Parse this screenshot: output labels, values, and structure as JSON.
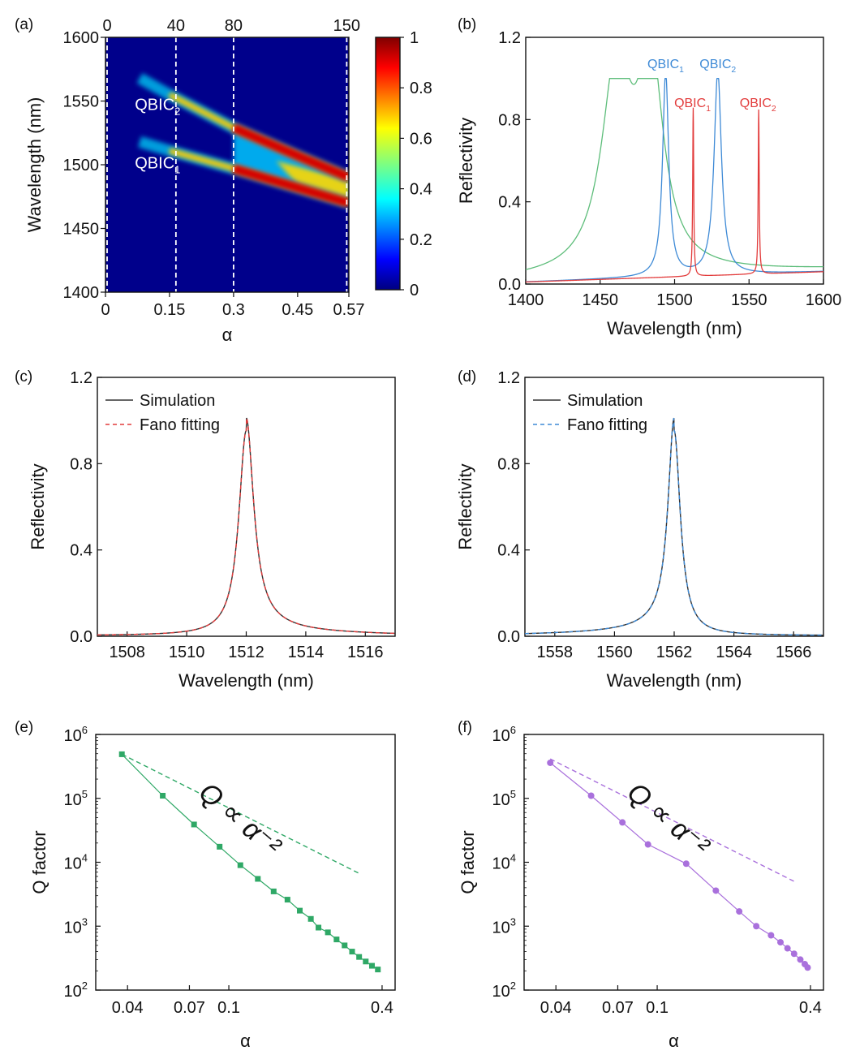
{
  "panels": [
    {
      "label": "(a)"
    },
    {
      "label": "(b)"
    },
    {
      "label": "(c)"
    },
    {
      "label": "(d)"
    },
    {
      "label": "(e)"
    },
    {
      "label": "(f)"
    }
  ],
  "chart_data": [
    {
      "panel": "(a)",
      "type": "heatmap",
      "xlabel": "α",
      "ylabel": "Wavelength (nm)",
      "xlim": [
        0,
        0.57
      ],
      "ylim": [
        1400,
        1600
      ],
      "xticks": [
        "0",
        "0.15",
        "0.3",
        "0.45",
        "0.57"
      ],
      "xtick_values": [
        0,
        0.15,
        0.3,
        0.45,
        0.57
      ],
      "yticks": [
        "1400",
        "1450",
        "1500",
        "1550",
        "1600"
      ],
      "yticks_values": [
        1400,
        1450,
        1500,
        1550,
        1600
      ],
      "top_ticks": [
        "0",
        "40",
        "80",
        "150"
      ],
      "top_tick_alpha": [
        0,
        0.165,
        0.3,
        0.565
      ],
      "colorbar": {
        "ticks": [
          "0",
          "0.2",
          "0.4",
          "0.6",
          "0.8",
          "1"
        ],
        "range": [
          0,
          1
        ]
      },
      "annotations": [
        {
          "text": "QBIC",
          "sub": "2",
          "x": 0.05,
          "y": 1543
        },
        {
          "text": "QBIC",
          "sub": "1",
          "x": 0.05,
          "y": 1497
        }
      ],
      "bands": [
        {
          "name": "QBIC1",
          "points": [
            [
              0.08,
              1518
            ],
            [
              0.15,
              1511
            ],
            [
              0.3,
              1497
            ],
            [
              0.45,
              1482
            ],
            [
              0.57,
              1470
            ]
          ]
        },
        {
          "name": "QBIC2",
          "points": [
            [
              0.08,
              1568
            ],
            [
              0.15,
              1555
            ],
            [
              0.3,
              1529
            ],
            [
              0.45,
              1507
            ],
            [
              0.57,
              1490
            ]
          ]
        }
      ]
    },
    {
      "panel": "(b)",
      "type": "line",
      "xlabel": "Wavelength (nm)",
      "ylabel": "Reflectivity",
      "xlim": [
        1400,
        1600
      ],
      "ylim": [
        0,
        1.2
      ],
      "xticks": [
        "1400",
        "1450",
        "1500",
        "1550",
        "1600"
      ],
      "xtick_values": [
        1400,
        1450,
        1500,
        1550,
        1600
      ],
      "yticks": [
        "0.0",
        "0.4",
        "0.8",
        "1.2"
      ],
      "ytick_values": [
        0,
        0.4,
        0.8,
        1.2
      ],
      "colors": {
        "green": "#5dbd7a",
        "blue": "#3e8ad6",
        "red": "#e23b3b"
      },
      "series_params": [
        {
          "color": "green",
          "peaks": [
            [
              1461,
              0.98,
              12
            ],
            [
              1484,
              0.98,
              10
            ]
          ],
          "baseline": 0.02
        },
        {
          "color": "blue",
          "peaks": [
            [
              1494,
              0.99,
              2.5
            ],
            [
              1529,
              0.99,
              3
            ]
          ],
          "baseline": 0.01
        },
        {
          "color": "red",
          "peaks": [
            [
              1512.5,
              0.82,
              0.4
            ],
            [
              1556.5,
              0.8,
              0.4
            ]
          ],
          "baseline": 0.01
        }
      ],
      "annotations": [
        {
          "text": "QBIC",
          "sub": "1",
          "x": 1494,
          "y": 1.05,
          "color": "blue"
        },
        {
          "text": "QBIC",
          "sub": "2",
          "x": 1529,
          "y": 1.05,
          "color": "blue"
        },
        {
          "text": "QBIC",
          "sub": "1",
          "x": 1512,
          "y": 0.86,
          "color": "red"
        },
        {
          "text": "QBIC",
          "sub": "2",
          "x": 1556,
          "y": 0.86,
          "color": "red"
        }
      ]
    },
    {
      "panel": "(c)",
      "type": "line",
      "xlabel": "Wavelength (nm)",
      "ylabel": "Reflectivity",
      "xlim": [
        1507,
        1517
      ],
      "ylim": [
        0,
        1.2
      ],
      "xticks": [
        "1508",
        "1510",
        "1512",
        "1514",
        "1516"
      ],
      "xtick_values": [
        1508,
        1510,
        1512,
        1514,
        1516
      ],
      "yticks": [
        "0.0",
        "0.4",
        "0.8",
        "1.2"
      ],
      "ytick_values": [
        0,
        0.4,
        0.8,
        1.2
      ],
      "legend": {
        "simulation": "Simulation",
        "fit": "Fano fitting"
      },
      "colors": {
        "sim": "#333333",
        "fit": "#e23b3b"
      },
      "fano": {
        "x0": 1512,
        "gamma": 0.3,
        "q": 6,
        "amp": 0.95,
        "asym": -1
      }
    },
    {
      "panel": "(d)",
      "type": "line",
      "xlabel": "Wavelength (nm)",
      "ylabel": "Reflectivity",
      "xlim": [
        1557,
        1567
      ],
      "ylim": [
        0,
        1.2
      ],
      "xticks": [
        "1558",
        "1560",
        "1562",
        "1564",
        "1566"
      ],
      "xtick_values": [
        1558,
        1560,
        1562,
        1564,
        1566
      ],
      "yticks": [
        "0.0",
        "0.4",
        "0.8",
        "1.2"
      ],
      "ytick_values": [
        0,
        0.4,
        0.8,
        1.2
      ],
      "legend": {
        "simulation": "Simulation",
        "fit": "Fano fitting"
      },
      "colors": {
        "sim": "#333333",
        "fit": "#3e8ad6"
      },
      "fano": {
        "x0": 1562,
        "gamma": 0.25,
        "q": 6,
        "amp": 0.95,
        "asym": 1
      }
    },
    {
      "panel": "(e)",
      "type": "scatter",
      "xlabel": "α",
      "ylabel": "Q factor",
      "xscale": "log",
      "yscale": "log",
      "xlim": [
        0.03,
        0.45
      ],
      "ylim": [
        100,
        1000000
      ],
      "xticks": [
        "0.04",
        "0.07",
        "0.1",
        "0.4"
      ],
      "xtick_values": [
        0.04,
        0.07,
        0.1,
        0.4
      ],
      "yticks": [
        {
          "base": "10",
          "exp": "2"
        },
        {
          "base": "10",
          "exp": "3"
        },
        {
          "base": "10",
          "exp": "4"
        },
        {
          "base": "10",
          "exp": "5"
        },
        {
          "base": "10",
          "exp": "6"
        }
      ],
      "ytick_values": [
        100,
        1000,
        10000,
        100000,
        1000000
      ],
      "annotation": "Q ∝ α⁻²",
      "marker": "square",
      "color": "#2fa866",
      "x": [
        0.038,
        0.055,
        0.073,
        0.092,
        0.111,
        0.13,
        0.15,
        0.17,
        0.19,
        0.21,
        0.225,
        0.245,
        0.265,
        0.285,
        0.305,
        0.325,
        0.345,
        0.365,
        0.385
      ],
      "y": [
        490000,
        110000,
        39000,
        17500,
        9000,
        5500,
        3500,
        2600,
        1750,
        1300,
        950,
        800,
        620,
        500,
        400,
        330,
        280,
        240,
        210
      ]
    },
    {
      "panel": "(f)",
      "type": "scatter",
      "xlabel": "α",
      "ylabel": "Q factor",
      "xscale": "log",
      "yscale": "log",
      "xlim": [
        0.03,
        0.45
      ],
      "ylim": [
        100,
        1000000
      ],
      "xticks": [
        "0.04",
        "0.07",
        "0.1",
        "0.4"
      ],
      "xtick_values": [
        0.04,
        0.07,
        0.1,
        0.4
      ],
      "yticks": [
        {
          "base": "10",
          "exp": "2"
        },
        {
          "base": "10",
          "exp": "3"
        },
        {
          "base": "10",
          "exp": "4"
        },
        {
          "base": "10",
          "exp": "5"
        },
        {
          "base": "10",
          "exp": "6"
        }
      ],
      "ytick_values": [
        100,
        1000,
        10000,
        100000,
        1000000
      ],
      "annotation": "Q ∝ α⁻²",
      "marker": "circle",
      "color": "#a970dc",
      "x": [
        0.038,
        0.055,
        0.073,
        0.092,
        0.13,
        0.17,
        0.21,
        0.245,
        0.28,
        0.305,
        0.325,
        0.345,
        0.365,
        0.38,
        0.39
      ],
      "y": [
        360000,
        110000,
        42000,
        19000,
        9500,
        3600,
        1700,
        1000,
        720,
        560,
        450,
        370,
        300,
        255,
        225
      ]
    }
  ]
}
